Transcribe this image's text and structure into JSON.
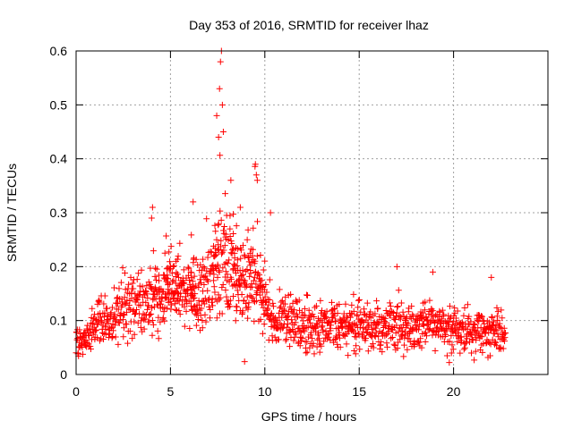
{
  "chart_data": {
    "type": "scatter",
    "title": "Day 353 of 2016, SRMTID for receiver lhaz",
    "xlabel": "GPS time / hours",
    "ylabel": "SRMTID / TECUs",
    "xlim": [
      0,
      25
    ],
    "ylim": [
      0,
      0.6
    ],
    "x_ticks": [
      "0",
      "5",
      "10",
      "15",
      "20"
    ],
    "y_ticks": [
      "0",
      "0.1",
      "0.2",
      "0.3",
      "0.4",
      "0.5",
      "0.6"
    ],
    "grid": true,
    "marker": "+",
    "series": [
      {
        "name": "SRMTID",
        "color": "#ff0000",
        "description_trend": "approximate envelope of the scattered samples",
        "x_hours": [
          0.0,
          0.5,
          1.0,
          1.5,
          2.0,
          2.5,
          3.0,
          3.5,
          4.0,
          4.5,
          5.0,
          5.5,
          6.0,
          6.5,
          7.0,
          7.5,
          7.7,
          8.0,
          8.5,
          9.0,
          9.5,
          10.0,
          10.5,
          11.0,
          12.0,
          13.0,
          14.0,
          15.0,
          16.0,
          17.0,
          18.0,
          19.0,
          20.0,
          21.0,
          22.0,
          22.7
        ],
        "center_tecu": [
          0.06,
          0.07,
          0.09,
          0.1,
          0.11,
          0.12,
          0.13,
          0.13,
          0.13,
          0.14,
          0.15,
          0.15,
          0.15,
          0.14,
          0.16,
          0.19,
          0.21,
          0.19,
          0.17,
          0.16,
          0.17,
          0.13,
          0.1,
          0.1,
          0.09,
          0.09,
          0.09,
          0.09,
          0.09,
          0.09,
          0.09,
          0.09,
          0.08,
          0.08,
          0.08,
          0.07
        ],
        "spread_tecu": [
          0.03,
          0.03,
          0.04,
          0.04,
          0.04,
          0.05,
          0.05,
          0.05,
          0.05,
          0.05,
          0.05,
          0.05,
          0.05,
          0.06,
          0.06,
          0.08,
          0.1,
          0.08,
          0.07,
          0.06,
          0.07,
          0.05,
          0.04,
          0.04,
          0.04,
          0.04,
          0.04,
          0.04,
          0.04,
          0.04,
          0.04,
          0.04,
          0.035,
          0.035,
          0.035,
          0.03
        ],
        "peaks": [
          {
            "x": 4.05,
            "y": 0.31
          },
          {
            "x": 4.0,
            "y": 0.29
          },
          {
            "x": 6.2,
            "y": 0.32
          },
          {
            "x": 7.45,
            "y": 0.48
          },
          {
            "x": 7.55,
            "y": 0.44
          },
          {
            "x": 7.6,
            "y": 0.53
          },
          {
            "x": 7.65,
            "y": 0.58
          },
          {
            "x": 7.7,
            "y": 0.6
          },
          {
            "x": 7.75,
            "y": 0.5
          },
          {
            "x": 7.8,
            "y": 0.45
          },
          {
            "x": 8.2,
            "y": 0.36
          },
          {
            "x": 8.7,
            "y": 0.31
          },
          {
            "x": 9.5,
            "y": 0.39
          },
          {
            "x": 9.55,
            "y": 0.37
          },
          {
            "x": 9.6,
            "y": 0.36
          },
          {
            "x": 10.3,
            "y": 0.3
          },
          {
            "x": 17.0,
            "y": 0.2
          },
          {
            "x": 18.9,
            "y": 0.19
          },
          {
            "x": 22.0,
            "y": 0.18
          }
        ],
        "sample_count": 1400,
        "x_end_hours": 22.75
      }
    ]
  }
}
